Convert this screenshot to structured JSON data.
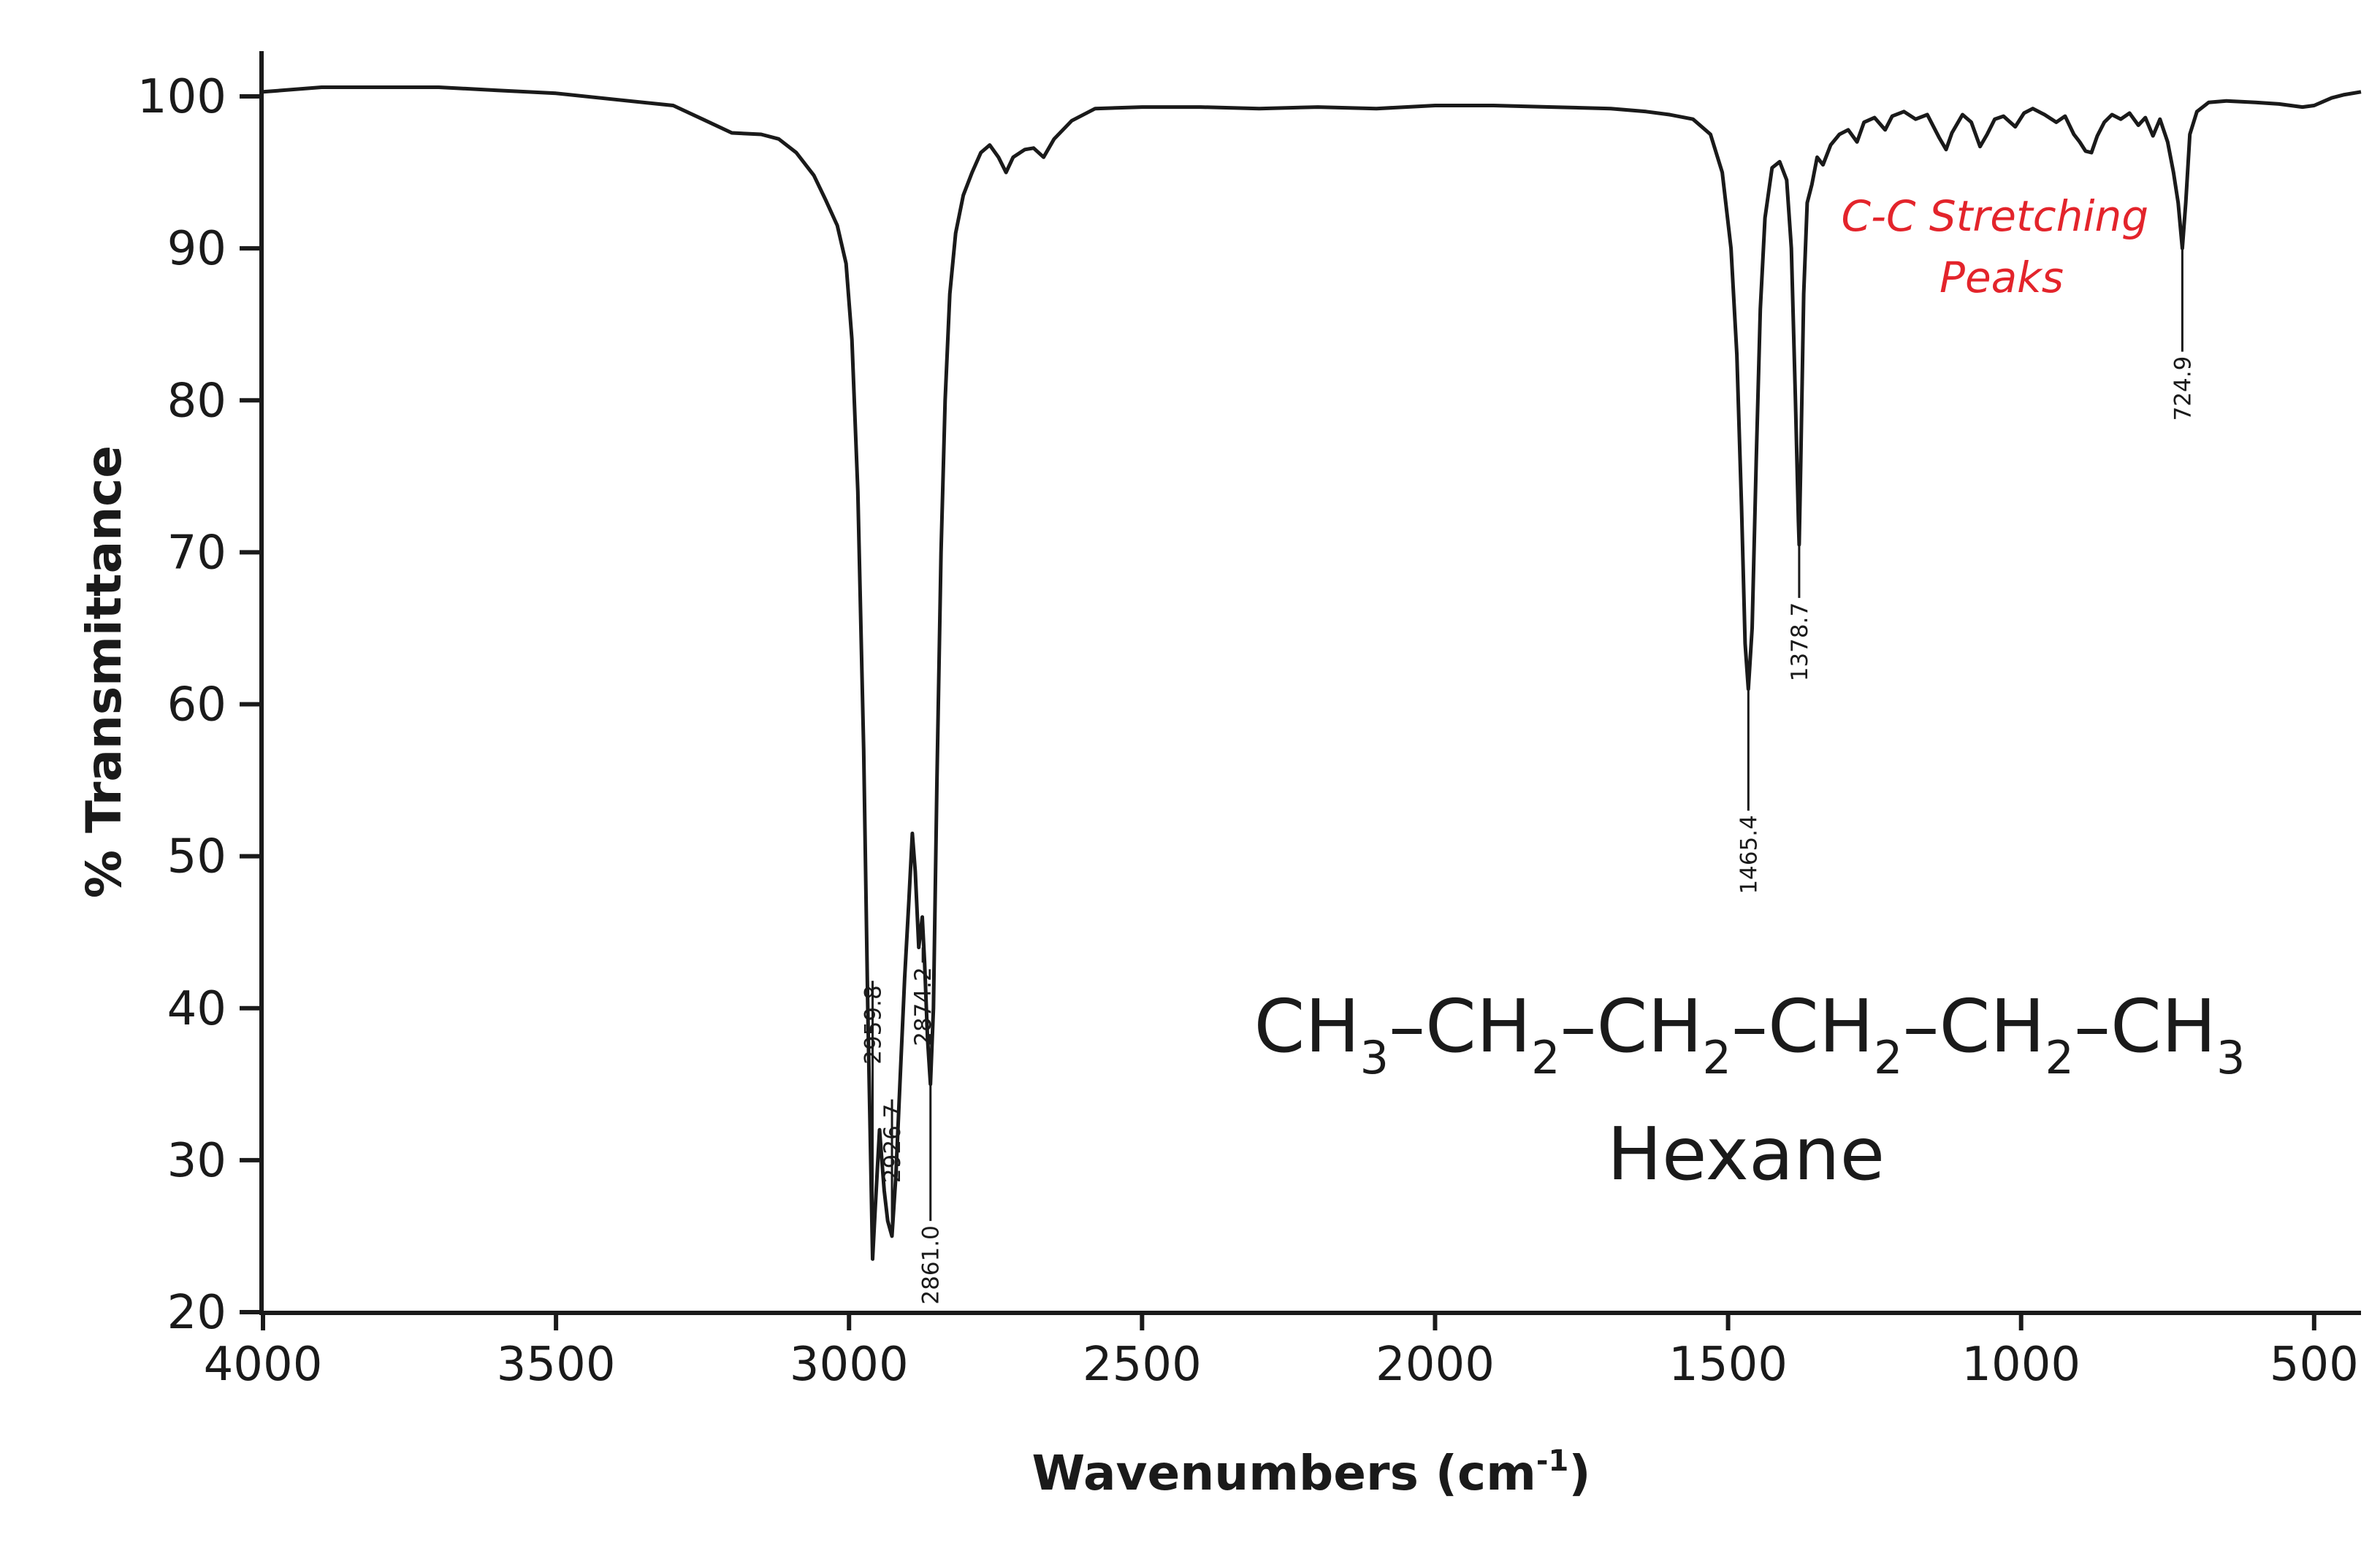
{
  "chart_data": {
    "type": "line",
    "xlabel": "Wavenumbers (cm",
    "xlabel_sup": "-1",
    "xlabel_end": ")",
    "ylabel": "% Transmittance",
    "xlim": [
      4000,
      420
    ],
    "ylim": [
      20,
      103
    ],
    "x_reversed": true,
    "grid": false,
    "x_ticks": [
      4000,
      3500,
      3000,
      2500,
      2000,
      1500,
      1000,
      500
    ],
    "y_ticks": [
      20,
      30,
      40,
      50,
      60,
      70,
      80,
      90,
      100
    ],
    "line_color": "#1a1a1a",
    "series": [
      {
        "points": [
          [
            4000,
            100.3
          ],
          [
            3900,
            100.6
          ],
          [
            3800,
            100.6
          ],
          [
            3700,
            100.6
          ],
          [
            3600,
            100.4
          ],
          [
            3500,
            100.2
          ],
          [
            3400,
            99.8
          ],
          [
            3300,
            99.4
          ],
          [
            3250,
            98.5
          ],
          [
            3200,
            97.6
          ],
          [
            3150,
            97.5
          ],
          [
            3120,
            97.2
          ],
          [
            3090,
            96.3
          ],
          [
            3060,
            94.8
          ],
          [
            3040,
            93.2
          ],
          [
            3020,
            91.5
          ],
          [
            3005,
            89.0
          ],
          [
            2995,
            84.0
          ],
          [
            2985,
            74.0
          ],
          [
            2975,
            57.0
          ],
          [
            2968,
            40.0
          ],
          [
            2962,
            28.0
          ],
          [
            2959.8,
            23.5
          ],
          [
            2955,
            27.0
          ],
          [
            2948,
            32.0
          ],
          [
            2940,
            28.0
          ],
          [
            2934,
            26.0
          ],
          [
            2926.7,
            25.0
          ],
          [
            2920,
            29.0
          ],
          [
            2912,
            36.0
          ],
          [
            2905,
            42.0
          ],
          [
            2898,
            47.0
          ],
          [
            2892,
            51.5
          ],
          [
            2887,
            49.0
          ],
          [
            2881,
            44.0
          ],
          [
            2875,
            46.0
          ],
          [
            2871,
            43.0
          ],
          [
            2866,
            38.0
          ],
          [
            2861,
            35.0
          ],
          [
            2856,
            40.0
          ],
          [
            2850,
            55.0
          ],
          [
            2843,
            70.0
          ],
          [
            2836,
            80.0
          ],
          [
            2828,
            87.0
          ],
          [
            2818,
            91.0
          ],
          [
            2805,
            93.5
          ],
          [
            2790,
            95.0
          ],
          [
            2775,
            96.3
          ],
          [
            2760,
            96.8
          ],
          [
            2745,
            96.0
          ],
          [
            2732,
            95.0
          ],
          [
            2720,
            96.0
          ],
          [
            2700,
            96.5
          ],
          [
            2685,
            96.6
          ],
          [
            2668,
            96.0
          ],
          [
            2650,
            97.2
          ],
          [
            2620,
            98.4
          ],
          [
            2580,
            99.2
          ],
          [
            2500,
            99.3
          ],
          [
            2400,
            99.3
          ],
          [
            2300,
            99.2
          ],
          [
            2200,
            99.3
          ],
          [
            2100,
            99.2
          ],
          [
            2000,
            99.4
          ],
          [
            1900,
            99.4
          ],
          [
            1800,
            99.3
          ],
          [
            1700,
            99.2
          ],
          [
            1640,
            99.0
          ],
          [
            1600,
            98.8
          ],
          [
            1560,
            98.5
          ],
          [
            1530,
            97.5
          ],
          [
            1510,
            95.0
          ],
          [
            1495,
            90.0
          ],
          [
            1485,
            83.0
          ],
          [
            1477,
            73.0
          ],
          [
            1471,
            64.0
          ],
          [
            1465.4,
            61.0
          ],
          [
            1459,
            65.0
          ],
          [
            1452,
            76.0
          ],
          [
            1445,
            86.0
          ],
          [
            1437,
            92.0
          ],
          [
            1425,
            95.3
          ],
          [
            1412,
            95.7
          ],
          [
            1400,
            94.5
          ],
          [
            1392,
            90.0
          ],
          [
            1385,
            80.0
          ],
          [
            1380,
            72.0
          ],
          [
            1378.7,
            70.5
          ],
          [
            1376,
            76.0
          ],
          [
            1371,
            87.0
          ],
          [
            1365,
            93.0
          ],
          [
            1357,
            94.2
          ],
          [
            1348,
            96.0
          ],
          [
            1338,
            95.5
          ],
          [
            1325,
            96.8
          ],
          [
            1310,
            97.5
          ],
          [
            1295,
            97.8
          ],
          [
            1280,
            97.0
          ],
          [
            1268,
            98.3
          ],
          [
            1250,
            98.6
          ],
          [
            1232,
            97.8
          ],
          [
            1220,
            98.7
          ],
          [
            1200,
            99.0
          ],
          [
            1180,
            98.5
          ],
          [
            1160,
            98.8
          ],
          [
            1140,
            97.3
          ],
          [
            1128,
            96.5
          ],
          [
            1118,
            97.6
          ],
          [
            1100,
            98.8
          ],
          [
            1085,
            98.3
          ],
          [
            1070,
            96.7
          ],
          [
            1058,
            97.5
          ],
          [
            1045,
            98.5
          ],
          [
            1030,
            98.7
          ],
          [
            1010,
            98.0
          ],
          [
            995,
            98.9
          ],
          [
            980,
            99.2
          ],
          [
            960,
            98.8
          ],
          [
            940,
            98.3
          ],
          [
            925,
            98.7
          ],
          [
            910,
            97.5
          ],
          [
            900,
            97.0
          ],
          [
            890,
            96.4
          ],
          [
            880,
            96.3
          ],
          [
            870,
            97.4
          ],
          [
            858,
            98.3
          ],
          [
            845,
            98.8
          ],
          [
            830,
            98.5
          ],
          [
            815,
            98.9
          ],
          [
            800,
            98.1
          ],
          [
            788,
            98.6
          ],
          [
            775,
            97.4
          ],
          [
            763,
            98.5
          ],
          [
            750,
            97.0
          ],
          [
            740,
            95.0
          ],
          [
            732,
            93.0
          ],
          [
            724.9,
            90.0
          ],
          [
            719,
            93.0
          ],
          [
            712,
            97.5
          ],
          [
            700,
            99.0
          ],
          [
            680,
            99.6
          ],
          [
            650,
            99.7
          ],
          [
            600,
            99.6
          ],
          [
            560,
            99.5
          ],
          [
            520,
            99.3
          ],
          [
            500,
            99.4
          ],
          [
            470,
            99.9
          ],
          [
            450,
            100.1
          ],
          [
            420,
            100.3
          ]
        ]
      }
    ],
    "peak_labels": [
      {
        "text": "2959.8",
        "x": 2959.8,
        "y": 23.5,
        "label_y": 41.8
      },
      {
        "text": "2926.7",
        "x": 2926.7,
        "y": 25.0,
        "label_y": 34.0
      },
      {
        "text": "2874.2",
        "x": 2874.2,
        "y": 44.0,
        "label_y": 43.0
      },
      {
        "text": "2861.0",
        "x": 2861.0,
        "y": 35.0,
        "label_y": 26.0
      },
      {
        "text": "1465.4",
        "x": 1465.4,
        "y": 61.0,
        "label_y": 53.0
      },
      {
        "text": "1378.7",
        "x": 1378.7,
        "y": 70.5,
        "label_y": 67.0
      },
      {
        "text": "724.9",
        "x": 724.9,
        "y": 90.0,
        "label_y": 83.2
      }
    ],
    "annotation": {
      "lines": [
        "C-C Stretching",
        "Peaks"
      ],
      "color": "#e3242b"
    },
    "formula": {
      "parts": [
        {
          "t": "CH",
          "s": "3"
        },
        {
          "t": "–CH",
          "s": "2"
        },
        {
          "t": "–CH",
          "s": "2"
        },
        {
          "t": "–CH",
          "s": "2"
        },
        {
          "t": "–CH",
          "s": "2"
        },
        {
          "t": "–CH",
          "s": "3"
        }
      ]
    },
    "compound_name": "Hexane"
  }
}
